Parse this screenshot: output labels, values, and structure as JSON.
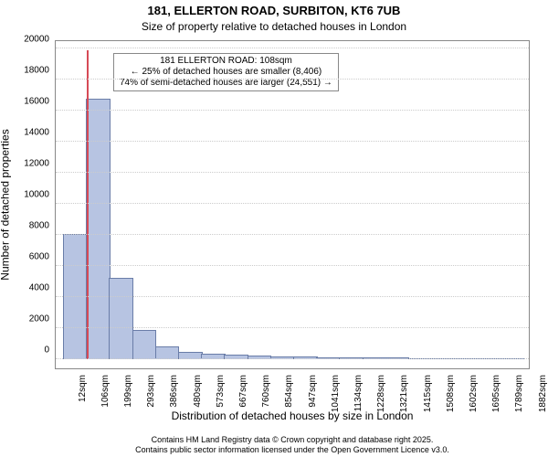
{
  "chart": {
    "type": "histogram",
    "title_main": "181, ELLERTON ROAD, SURBITON, KT6 7UB",
    "title_sub": "Size of property relative to detached houses in London",
    "title_fontsize": 13,
    "subtitle_fontsize": 12,
    "ylabel": "Number of detached properties",
    "xlabel": "Distribution of detached houses by size in London",
    "label_fontsize": 12,
    "tick_fontsize": 10,
    "background_color": "#ffffff",
    "border_color": "#888888",
    "grid_color": "#cccccc",
    "bar_fill": "#b7c4e2",
    "bar_stroke": "#6a7da8",
    "refline_color": "#d64a56",
    "ylim": [
      0,
      20000
    ],
    "ytick_step": 2000,
    "yticks": [
      0,
      2000,
      4000,
      6000,
      8000,
      10000,
      12000,
      14000,
      16000,
      18000,
      20000
    ],
    "x_bin_width_sqm": 93.4,
    "x_start_sqm": 12,
    "xticks_labels": [
      "12sqm",
      "106sqm",
      "199sqm",
      "293sqm",
      "386sqm",
      "480sqm",
      "573sqm",
      "667sqm",
      "760sqm",
      "854sqm",
      "947sqm",
      "1041sqm",
      "1134sqm",
      "1228sqm",
      "1321sqm",
      "1415sqm",
      "1508sqm",
      "1602sqm",
      "1695sqm",
      "1789sqm",
      "1882sqm"
    ],
    "bars": [
      8000,
      16700,
      5200,
      1800,
      750,
      420,
      300,
      220,
      150,
      110,
      90,
      70,
      55,
      45,
      38,
      30,
      25,
      20,
      15,
      12
    ],
    "reference": {
      "value_sqm": 108,
      "label_lines": [
        "181 ELLERTON ROAD: 108sqm",
        "← 25% of detached houses are smaller (8,406)",
        "74% of semi-detached houses are larger (24,551) →"
      ],
      "annot_fontsize": 10
    },
    "footer_lines": [
      "Contains HM Land Registry data © Crown copyright and database right 2025.",
      "Contains public sector information licensed under the Open Government Licence v3.0."
    ],
    "footer_fontsize": 9
  }
}
